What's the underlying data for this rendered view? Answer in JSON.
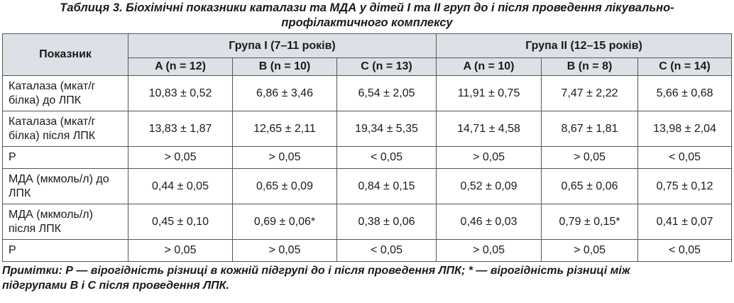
{
  "title_lines": [
    "Таблиця 3. Біохімічні показники каталази та МДА у дітей І та ІІ груп до і після проведення лікувально-",
    "профілактичного комплексу"
  ],
  "table": {
    "header": {
      "indicator": "Показник",
      "groups": [
        "Група І (7–11 років)",
        "Група ІІ (12–15 років)"
      ],
      "subgroups": [
        "A (n = 12)",
        "B (n = 10)",
        "C (n = 13)",
        "A (n = 10)",
        "B (n = 8)",
        "C (n = 14)"
      ]
    },
    "rows": [
      [
        "Каталаза (мкат/г білка) до ЛПК",
        "10,83 ± 0,52",
        "6,86 ± 3,46",
        "6,54 ± 2,05",
        "11,91 ± 0,75",
        "7,47 ± 2,22",
        "5,66 ± 0,68"
      ],
      [
        "Каталаза (мкат/г білка) після ЛПК",
        "13,83 ± 1,87",
        "12,65 ± 2,11",
        "19,34 ± 5,35",
        "14,71 ± 4,58",
        "8,67 ± 1,81",
        "13,98 ± 2,04"
      ],
      [
        "Р",
        "> 0,05",
        "> 0,05",
        "< 0,05",
        "> 0,05",
        "> 0,05",
        "< 0,05"
      ],
      [
        "МДА (мкмоль/л) до ЛПК",
        "0,44 ± 0,05",
        "0,65 ± 0,09",
        "0,84 ± 0,15",
        "0,52 ± 0,09",
        "0,65 ± 0,06",
        "0,75 ± 0,12"
      ],
      [
        "МДА (мкмоль/л) після ЛПК",
        "0,45 ± 0,10",
        "0,69 ± 0,06*",
        "0,38 ± 0,06",
        "0,46 ± 0,03",
        "0,79 ± 0,15*",
        "0,41 ± 0,07"
      ],
      [
        "Р",
        "> 0,05",
        "> 0,05",
        "< 0,05",
        "> 0,05",
        "> 0,05",
        "< 0,05"
      ]
    ]
  },
  "notes_lines": [
    "Примітки: Р — вірогідність різниці в кожній підгрупі до і після проведення ЛПК; * — вірогідність різниці між",
    "підгрупами В і С після проведення ЛПК."
  ]
}
